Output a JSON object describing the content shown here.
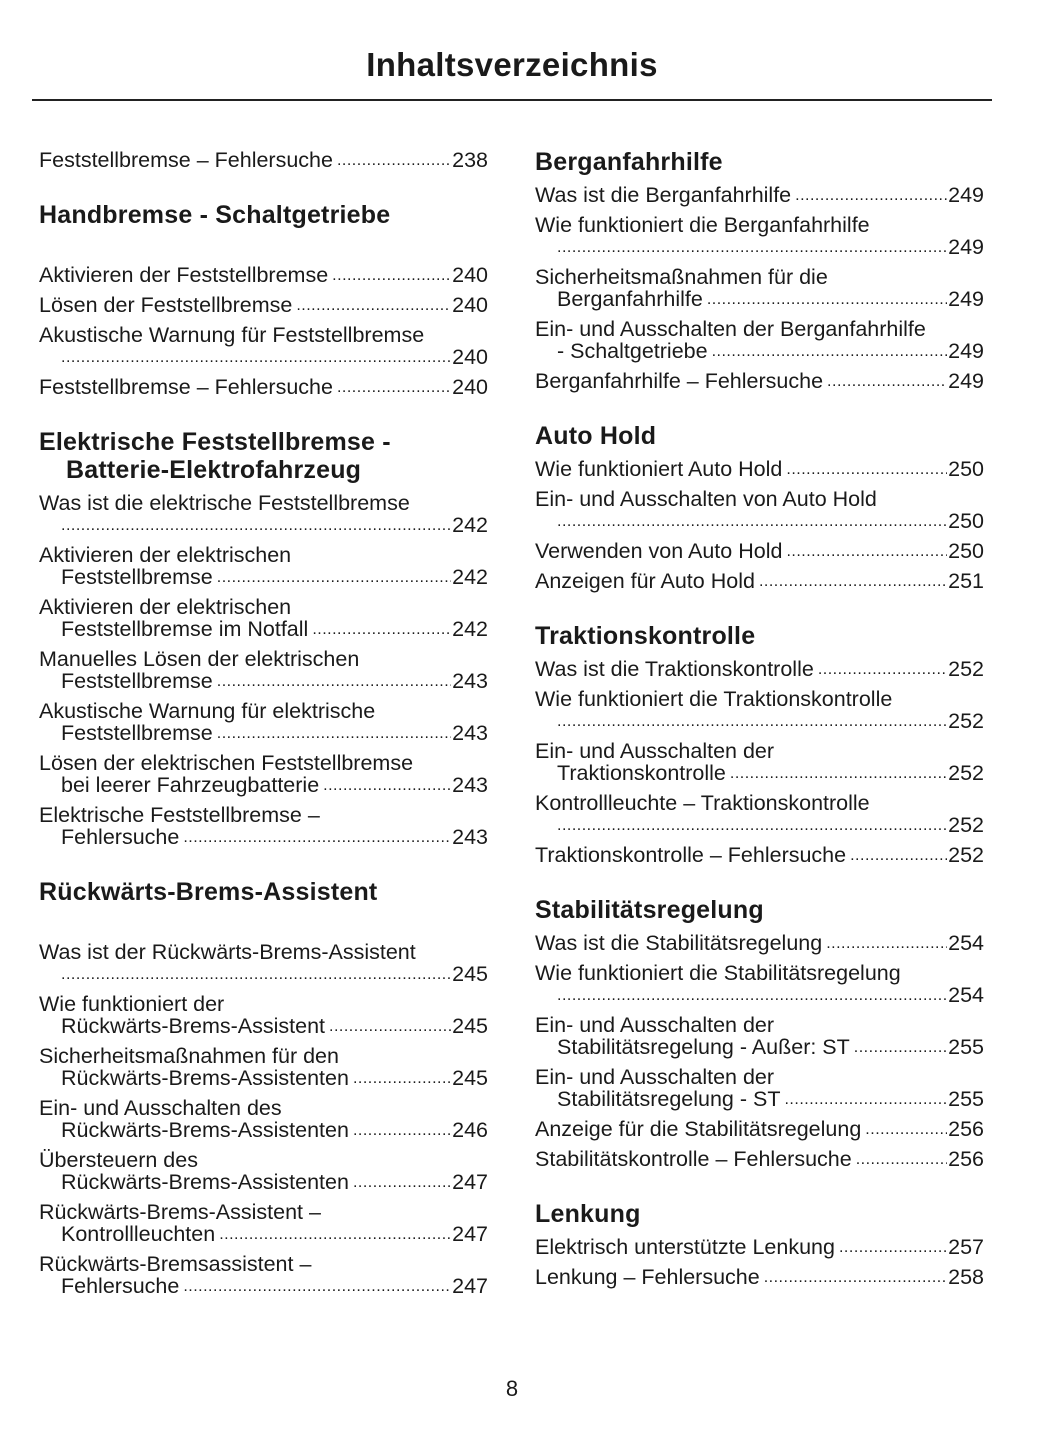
{
  "title": "Inhaltsverzeichnis",
  "page_number": "8",
  "columns": [
    [
      {
        "heading": null,
        "entries": [
          {
            "lines": [
              "Feststellbremse – Fehlersuche"
            ],
            "page": "238"
          }
        ]
      },
      {
        "heading": [
          "Handbremse - Schaltgetriebe"
        ],
        "entries": [
          {
            "lines": [
              "Aktivieren der Feststellbremse"
            ],
            "page": "240"
          },
          {
            "lines": [
              "Lösen der Feststellbremse"
            ],
            "page": "240"
          },
          {
            "lines": [
              "Akustische Warnung für Feststellbremse",
              ""
            ],
            "page": "240"
          },
          {
            "lines": [
              "Feststellbremse – Fehlersuche"
            ],
            "page": "240"
          }
        ]
      },
      {
        "heading": [
          "Elektrische Feststellbremse -",
          "Batterie-Elektrofahrzeug"
        ],
        "entries": [
          {
            "lines": [
              "Was ist die elektrische Feststellbremse",
              ""
            ],
            "page": "242"
          },
          {
            "lines": [
              "Aktivieren der elektrischen",
              "Feststellbremse"
            ],
            "page": "242"
          },
          {
            "lines": [
              "Aktivieren der elektrischen",
              "Feststellbremse im Notfall"
            ],
            "page": "242"
          },
          {
            "lines": [
              "Manuelles Lösen der elektrischen",
              "Feststellbremse"
            ],
            "page": "243"
          },
          {
            "lines": [
              "Akustische Warnung für elektrische",
              "Feststellbremse"
            ],
            "page": "243"
          },
          {
            "lines": [
              "Lösen der elektrischen Feststellbremse",
              "bei leerer Fahrzeugbatterie"
            ],
            "page": "243"
          },
          {
            "lines": [
              "Elektrische Feststellbremse –",
              "Fehlersuche"
            ],
            "page": "243"
          }
        ]
      },
      {
        "heading": [
          "Rückwärts-Brems-Assistent"
        ],
        "entries": [
          {
            "lines": [
              "Was ist der Rückwärts-Brems-Assistent",
              ""
            ],
            "page": "245"
          },
          {
            "lines": [
              "Wie funktioniert der",
              "Rückwärts-Brems-Assistent"
            ],
            "page": "245"
          },
          {
            "lines": [
              "Sicherheitsmaßnahmen für den",
              "Rückwärts-Brems-Assistenten"
            ],
            "page": "245"
          },
          {
            "lines": [
              "Ein- und Ausschalten des",
              "Rückwärts-Brems-Assistenten"
            ],
            "page": "246"
          },
          {
            "lines": [
              "Übersteuern des",
              "Rückwärts-Brems-Assistenten"
            ],
            "page": "247"
          },
          {
            "lines": [
              "Rückwärts-Brems-Assistent –",
              "Kontrollleuchten"
            ],
            "page": "247"
          },
          {
            "lines": [
              "Rückwärts-Bremsassistent –",
              "Fehlersuche"
            ],
            "page": "247"
          }
        ]
      }
    ],
    [
      {
        "heading": [
          "Berganfahrhilfe"
        ],
        "entries": [
          {
            "lines": [
              "Was ist die Berganfahrhilfe"
            ],
            "page": "249"
          },
          {
            "lines": [
              "Wie funktioniert die Berganfahrhilfe",
              ""
            ],
            "page": "249"
          },
          {
            "lines": [
              "Sicherheitsmaßnahmen für die",
              "Berganfahrhilfe"
            ],
            "page": "249"
          },
          {
            "lines": [
              "Ein- und Ausschalten der Berganfahrhilfe",
              "- Schaltgetriebe"
            ],
            "page": "249"
          },
          {
            "lines": [
              "Berganfahrhilfe – Fehlersuche"
            ],
            "page": "249"
          }
        ]
      },
      {
        "heading": [
          "Auto Hold"
        ],
        "entries": [
          {
            "lines": [
              "Wie funktioniert Auto Hold"
            ],
            "page": "250"
          },
          {
            "lines": [
              "Ein- und Ausschalten von Auto Hold",
              ""
            ],
            "page": "250"
          },
          {
            "lines": [
              "Verwenden von Auto Hold"
            ],
            "page": "250"
          },
          {
            "lines": [
              "Anzeigen für Auto Hold"
            ],
            "page": "251"
          }
        ]
      },
      {
        "heading": [
          "Traktionskontrolle"
        ],
        "entries": [
          {
            "lines": [
              "Was ist die Traktionskontrolle"
            ],
            "page": "252"
          },
          {
            "lines": [
              "Wie funktioniert die Traktionskontrolle",
              ""
            ],
            "page": "252"
          },
          {
            "lines": [
              "Ein- und Ausschalten der",
              "Traktionskontrolle"
            ],
            "page": "252"
          },
          {
            "lines": [
              "Kontrollleuchte – Traktionskontrolle",
              ""
            ],
            "page": "252"
          },
          {
            "lines": [
              "Traktionskontrolle – Fehlersuche"
            ],
            "page": "252"
          }
        ]
      },
      {
        "heading": [
          "Stabilitätsregelung"
        ],
        "entries": [
          {
            "lines": [
              "Was ist die Stabilitätsregelung"
            ],
            "page": "254"
          },
          {
            "lines": [
              "Wie funktioniert die Stabilitätsregelung",
              ""
            ],
            "page": "254"
          },
          {
            "lines": [
              "Ein- und Ausschalten der",
              "Stabilitätsregelung - Außer: ST"
            ],
            "page": "255"
          },
          {
            "lines": [
              "Ein- und Ausschalten der",
              "Stabilitätsregelung - ST"
            ],
            "page": "255"
          },
          {
            "lines": [
              "Anzeige für die Stabilitätsregelung"
            ],
            "page": "256"
          },
          {
            "lines": [
              "Stabilitätskontrolle – Fehlersuche"
            ],
            "page": "256"
          }
        ]
      },
      {
        "heading": [
          "Lenkung"
        ],
        "entries": [
          {
            "lines": [
              "Elektrisch unterstützte Lenkung"
            ],
            "page": "257"
          },
          {
            "lines": [
              "Lenkung – Fehlersuche"
            ],
            "page": "258"
          }
        ]
      }
    ]
  ]
}
